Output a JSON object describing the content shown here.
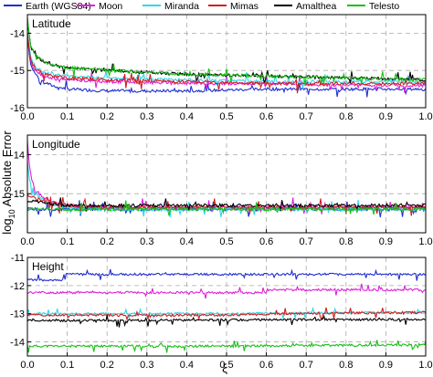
{
  "legend": [
    {
      "name": "Earth (WGS84)",
      "color": "#1f2fd0"
    },
    {
      "name": "Moon",
      "color": "#e020d8"
    },
    {
      "name": "Miranda",
      "color": "#30d8e8"
    },
    {
      "name": "Mimas",
      "color": "#d02020"
    },
    {
      "name": "Amalthea",
      "color": "#000000"
    },
    {
      "name": "Telesto",
      "color": "#18c018"
    }
  ],
  "xlabel": "ξ",
  "ylabel_prefix": "log",
  "ylabel_sub": "10",
  "ylabel_suffix": " Absolute Error",
  "chart_data": [
    {
      "type": "line",
      "title": "Latitude",
      "xlim": [
        0,
        1
      ],
      "ylim": [
        -16,
        -13.5
      ],
      "x_ticks": [
        "0.0",
        "0.1",
        "0.2",
        "0.3",
        "0.4",
        "0.5",
        "0.6",
        "0.7",
        "0.8",
        "0.9",
        "1.0"
      ],
      "y_ticks": [
        {
          "v": -14,
          "label": "-14"
        },
        {
          "v": -15,
          "label": "-15"
        },
        {
          "v": -16,
          "label": "-16"
        }
      ],
      "grid": true,
      "series": [
        {
          "name": "Earth (WGS84)",
          "color": "#1f2fd0",
          "x": [
            0.0,
            0.005,
            0.01,
            0.02,
            0.04,
            0.06,
            0.08,
            0.1,
            0.2,
            0.4,
            0.6,
            0.8,
            1.0
          ],
          "y": [
            -14.0,
            -14.6,
            -14.9,
            -15.1,
            -15.3,
            -15.4,
            -15.45,
            -15.5,
            -15.55,
            -15.55,
            -15.5,
            -15.5,
            -15.5
          ]
        },
        {
          "name": "Moon",
          "color": "#e020d8",
          "x": [
            0.0,
            0.005,
            0.01,
            0.02,
            0.04,
            0.06,
            0.1,
            0.2,
            0.4,
            0.6,
            0.8,
            1.0
          ],
          "y": [
            -14.0,
            -14.5,
            -14.8,
            -15.0,
            -15.15,
            -15.2,
            -15.25,
            -15.3,
            -15.35,
            -15.35,
            -15.4,
            -15.4
          ]
        },
        {
          "name": "Miranda",
          "color": "#30d8e8",
          "x": [
            0.0,
            0.005,
            0.01,
            0.02,
            0.04,
            0.06,
            0.1,
            0.2,
            0.4,
            0.6,
            0.8,
            1.0
          ],
          "y": [
            -13.9,
            -14.4,
            -14.7,
            -14.9,
            -15.05,
            -15.1,
            -15.15,
            -15.2,
            -15.25,
            -15.3,
            -15.3,
            -15.3
          ]
        },
        {
          "name": "Mimas",
          "color": "#d02020",
          "x": [
            0.0,
            0.005,
            0.01,
            0.02,
            0.04,
            0.06,
            0.1,
            0.2,
            0.4,
            0.6,
            0.8,
            1.0
          ],
          "y": [
            -14.0,
            -14.5,
            -14.75,
            -14.95,
            -15.1,
            -15.15,
            -15.2,
            -15.25,
            -15.3,
            -15.35,
            -15.35,
            -15.35
          ]
        },
        {
          "name": "Amalthea",
          "color": "#000000",
          "x": [
            0.0,
            0.005,
            0.01,
            0.02,
            0.04,
            0.06,
            0.1,
            0.2,
            0.3,
            0.4,
            0.6,
            0.8,
            1.0
          ],
          "y": [
            -13.6,
            -14.1,
            -14.4,
            -14.6,
            -14.75,
            -14.85,
            -14.92,
            -15.0,
            -15.05,
            -15.1,
            -15.15,
            -15.2,
            -15.25
          ]
        },
        {
          "name": "Telesto",
          "color": "#18c018",
          "x": [
            0.0,
            0.005,
            0.01,
            0.02,
            0.04,
            0.06,
            0.1,
            0.2,
            0.3,
            0.4,
            0.6,
            0.8,
            1.0
          ],
          "y": [
            -13.6,
            -14.1,
            -14.4,
            -14.6,
            -14.75,
            -14.85,
            -14.92,
            -15.0,
            -15.05,
            -15.1,
            -15.15,
            -15.2,
            -15.25
          ]
        }
      ]
    },
    {
      "type": "line",
      "title": "Longitude",
      "xlim": [
        0,
        1
      ],
      "ylim": [
        -16,
        -13.5
      ],
      "x_ticks": [
        "0.0",
        "0.1",
        "0.2",
        "0.3",
        "0.4",
        "0.5",
        "0.6",
        "0.7",
        "0.8",
        "0.9",
        "1.0"
      ],
      "y_ticks": [
        {
          "v": -14,
          "label": "-14"
        },
        {
          "v": -15,
          "label": "-15"
        }
      ],
      "grid": true,
      "series": [
        {
          "name": "Earth (WGS84)",
          "color": "#1f2fd0",
          "x": [
            0.0,
            1.0
          ],
          "y": [
            -15.4,
            -15.4
          ]
        },
        {
          "name": "Moon",
          "color": "#e020d8",
          "x": [
            0.0,
            0.003,
            0.01,
            0.02,
            0.04,
            0.06,
            0.1,
            0.15,
            0.2,
            0.4,
            0.6,
            0.8,
            1.0
          ],
          "y": [
            -13.6,
            -14.1,
            -14.6,
            -14.9,
            -15.1,
            -15.2,
            -15.3,
            -15.35,
            -15.35,
            -15.35,
            -15.35,
            -15.35,
            -15.35
          ]
        },
        {
          "name": "Miranda",
          "color": "#30d8e8",
          "x": [
            0.0,
            0.005,
            0.01,
            0.02,
            0.04,
            0.06,
            0.1,
            0.15,
            0.2,
            0.4,
            0.6,
            0.8,
            1.0
          ],
          "y": [
            -14.2,
            -14.6,
            -14.8,
            -15.0,
            -15.15,
            -15.25,
            -15.35,
            -15.4,
            -15.4,
            -15.4,
            -15.4,
            -15.4,
            -15.4
          ]
        },
        {
          "name": "Mimas",
          "color": "#d02020",
          "x": [
            0.0,
            0.01,
            0.05,
            0.1,
            0.2,
            0.4,
            0.6,
            0.8,
            1.0
          ],
          "y": [
            -15.0,
            -15.1,
            -15.2,
            -15.3,
            -15.35,
            -15.35,
            -15.35,
            -15.35,
            -15.35
          ]
        },
        {
          "name": "Amalthea",
          "color": "#000000",
          "x": [
            0.0,
            0.02,
            0.05,
            0.1,
            0.2,
            0.4,
            0.6,
            0.8,
            1.0
          ],
          "y": [
            -15.2,
            -15.2,
            -15.25,
            -15.3,
            -15.3,
            -15.3,
            -15.3,
            -15.3,
            -15.3
          ]
        },
        {
          "name": "Telesto",
          "color": "#18c018",
          "x": [
            0.0,
            1.0
          ],
          "y": [
            -15.4,
            -15.4
          ]
        }
      ]
    },
    {
      "type": "line",
      "title": "Height",
      "xlim": [
        0,
        1
      ],
      "ylim": [
        -14.5,
        -11
      ],
      "x_ticks": [
        "0.0",
        "0.1",
        "0.2",
        "0.3",
        "0.4",
        "0.5",
        "0.6",
        "0.7",
        "0.8",
        "0.9",
        "1.0"
      ],
      "y_ticks": [
        {
          "v": -11,
          "label": "-11"
        },
        {
          "v": -12,
          "label": "-12"
        },
        {
          "v": -13,
          "label": "-13"
        },
        {
          "v": -14,
          "label": "-14"
        }
      ],
      "grid": true,
      "series": [
        {
          "name": "Earth (WGS84)",
          "color": "#1f2fd0",
          "x": [
            0.0,
            0.09,
            0.09,
            0.3,
            0.5,
            0.7,
            1.0
          ],
          "y": [
            -11.8,
            -11.8,
            -11.6,
            -11.6,
            -11.6,
            -11.6,
            -11.6
          ]
        },
        {
          "name": "Moon",
          "color": "#e020d8",
          "x": [
            0.0,
            0.3,
            0.6,
            0.6,
            0.8,
            1.0
          ],
          "y": [
            -12.25,
            -12.25,
            -12.25,
            -12.15,
            -12.15,
            -12.15
          ]
        },
        {
          "name": "Miranda",
          "color": "#30d8e8",
          "x": [
            0.0,
            0.5,
            0.9,
            1.0
          ],
          "y": [
            -13.0,
            -13.0,
            -12.95,
            -12.95
          ]
        },
        {
          "name": "Mimas",
          "color": "#d02020",
          "x": [
            0.0,
            0.5,
            0.65,
            1.0
          ],
          "y": [
            -13.05,
            -13.05,
            -13.0,
            -12.95
          ]
        },
        {
          "name": "Amalthea",
          "color": "#000000",
          "x": [
            0.0,
            0.5,
            1.0
          ],
          "y": [
            -13.25,
            -13.22,
            -13.2
          ]
        },
        {
          "name": "Telesto",
          "color": "#18c018",
          "x": [
            0.0,
            0.5,
            1.0
          ],
          "y": [
            -14.15,
            -14.15,
            -14.1
          ]
        }
      ]
    }
  ]
}
